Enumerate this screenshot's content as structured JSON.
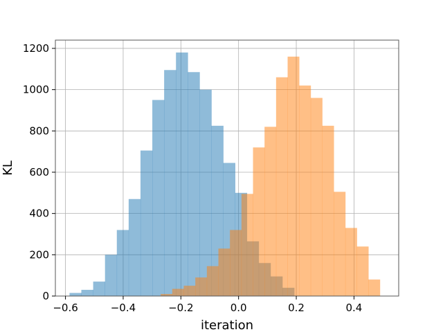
{
  "chart_data": {
    "type": "bar",
    "subtype": "overlapping-histogram",
    "title": "",
    "xlabel": "iteration",
    "ylabel": "KL",
    "xlim": [
      -0.635,
      0.555
    ],
    "ylim": [
      0,
      1240
    ],
    "grid": true,
    "xticks": [
      -0.6,
      -0.4,
      -0.2,
      0.0,
      0.2,
      0.4
    ],
    "xtick_labels": [
      "−0.6",
      "−0.4",
      "−0.2",
      "0.0",
      "0.2",
      "0.4"
    ],
    "yticks": [
      0,
      200,
      400,
      600,
      800,
      1000,
      1200
    ],
    "ytick_labels": [
      "0",
      "200",
      "400",
      "600",
      "800",
      "1000",
      "1200"
    ],
    "series": [
      {
        "color": "#1f77b4",
        "opacity": 0.5,
        "bin_edges": [
          -0.586,
          -0.545,
          -0.504,
          -0.463,
          -0.422,
          -0.381,
          -0.34,
          -0.299,
          -0.258,
          -0.217,
          -0.176,
          -0.135,
          -0.094,
          -0.053,
          -0.012,
          0.029,
          0.07,
          0.111,
          0.152,
          0.193
        ],
        "counts": [
          15,
          30,
          70,
          200,
          320,
          470,
          705,
          950,
          1095,
          1180,
          1085,
          1000,
          825,
          645,
          500,
          265,
          160,
          95,
          40
        ]
      },
      {
        "color": "#ff7f0e",
        "opacity": 0.5,
        "bin_edges": [
          -0.27,
          -0.23,
          -0.19,
          -0.15,
          -0.11,
          -0.07,
          -0.03,
          0.01,
          0.05,
          0.09,
          0.13,
          0.17,
          0.21,
          0.25,
          0.29,
          0.33,
          0.37,
          0.41,
          0.45,
          0.49
        ],
        "counts": [
          10,
          35,
          50,
          90,
          145,
          230,
          320,
          495,
          720,
          820,
          1060,
          1160,
          1020,
          960,
          825,
          505,
          330,
          240,
          80
        ]
      }
    ]
  }
}
